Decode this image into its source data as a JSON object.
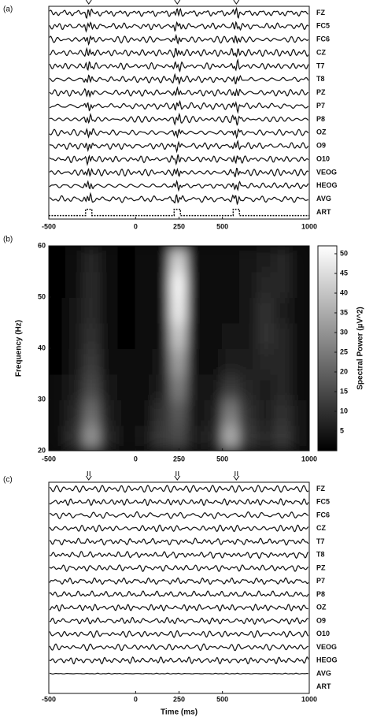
{
  "chart_data": [
    {
      "type": "traces",
      "panel_label": "(a)",
      "channels": [
        "FZ",
        "FC5",
        "FC6",
        "CZ",
        "T7",
        "T8",
        "PZ",
        "P7",
        "P8",
        "OZ",
        "O9",
        "O10",
        "VEOG",
        "HEOG",
        "AVG",
        "ART"
      ],
      "marker_times": [
        -270,
        240,
        580
      ],
      "xlim": [
        -500,
        1000
      ],
      "xticks": [
        -500,
        0,
        250,
        500,
        1000
      ]
    },
    {
      "type": "heatmap",
      "panel_label": "(b)",
      "ylabel": "Frequency (Hz)",
      "x": [
        -450,
        -350,
        -250,
        -150,
        -50,
        50,
        150,
        250,
        350,
        450,
        550,
        650,
        750,
        850,
        950
      ],
      "y": [
        22.5,
        27.5,
        32.5,
        37.5,
        42.5,
        47.5,
        52.5,
        57.5
      ],
      "z": [
        [
          3,
          10,
          30,
          8,
          3,
          4,
          12,
          15,
          6,
          8,
          35,
          12,
          8,
          12,
          5
        ],
        [
          2,
          8,
          22,
          6,
          2,
          3,
          10,
          18,
          5,
          6,
          25,
          10,
          6,
          10,
          4
        ],
        [
          2,
          6,
          15,
          4,
          2,
          2,
          6,
          25,
          4,
          4,
          12,
          8,
          6,
          8,
          3
        ],
        [
          1,
          5,
          12,
          3,
          2,
          2,
          4,
          32,
          3,
          3,
          6,
          6,
          8,
          8,
          3
        ],
        [
          1,
          4,
          10,
          3,
          1,
          2,
          3,
          40,
          2,
          3,
          4,
          5,
          10,
          8,
          2
        ],
        [
          1,
          4,
          9,
          2,
          1,
          2,
          3,
          48,
          2,
          2,
          3,
          4,
          10,
          6,
          2
        ],
        [
          1,
          3,
          9,
          2,
          1,
          2,
          3,
          50,
          2,
          2,
          3,
          4,
          8,
          8,
          2
        ],
        [
          1,
          3,
          8,
          2,
          1,
          2,
          3,
          42,
          2,
          2,
          3,
          4,
          6,
          8,
          2
        ]
      ],
      "xlim": [
        -500,
        1000
      ],
      "xticks": [
        -500,
        0,
        250,
        500,
        1000
      ],
      "ylim": [
        20,
        60
      ],
      "yticks": [
        20,
        30,
        40,
        50,
        60
      ],
      "colorbar": {
        "label": "Spectral Power (µV^2)",
        "lim": [
          0,
          52
        ],
        "ticks": [
          5,
          10,
          15,
          20,
          25,
          30,
          35,
          40,
          45,
          50
        ]
      }
    },
    {
      "type": "traces",
      "panel_label": "(c)",
      "xlabel": "Time (ms)",
      "channels": [
        "FZ",
        "FC5",
        "FC6",
        "CZ",
        "T7",
        "T8",
        "PZ",
        "P7",
        "P8",
        "OZ",
        "O9",
        "O10",
        "VEOG",
        "HEOG",
        "AVG",
        "ART"
      ],
      "marker_times": [
        -270,
        240,
        580
      ],
      "xlim": [
        -500,
        1000
      ],
      "xticks": [
        -500,
        0,
        250,
        500,
        1000
      ]
    }
  ]
}
